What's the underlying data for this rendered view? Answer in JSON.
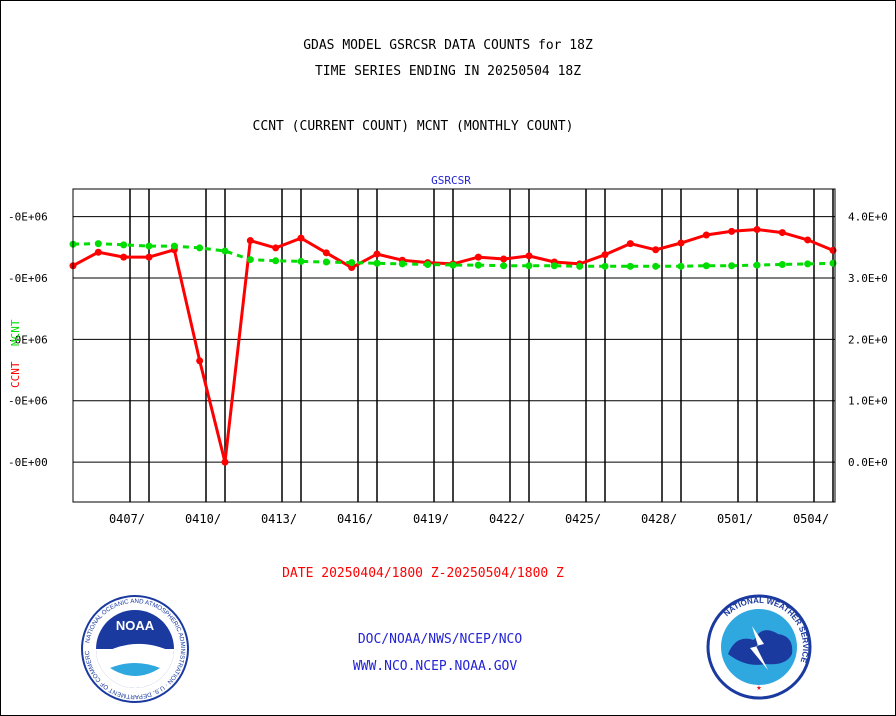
{
  "title_line1": "GDAS MODEL GSRCSR DATA COUNTS for 18Z",
  "title_line2": "TIME SERIES ENDING IN 20250504 18Z",
  "subtitle": "CCNT (CURRENT COUNT) MCNT (MONTHLY COUNT)",
  "date_range": "DATE 20250404/1800 Z-20250504/1800 Z",
  "credit_line1": "DOC/NOAA/NWS/NCEP/NCO",
  "credit_line2": "WWW.NCO.NCEP.NOAA.GOV",
  "logos": {
    "left": {
      "name": "NOAA",
      "ring_text": "NATIONAL OCEANIC AND ATMOSPHERIC ADMINISTRATION · U.S. DEPARTMENT OF COMMERCE"
    },
    "right": {
      "ring_text": "NATIONAL WEATHER SERVICE"
    }
  },
  "colors": {
    "ccnt": "#ff0000",
    "mcnt": "#00dd00",
    "plot_label": "#2323d6",
    "frame": "#000000"
  },
  "chart_data": {
    "type": "line",
    "plot_label": "GSRCSR",
    "ylabel_left": [
      "CCNT",
      "MCNT"
    ],
    "ylim": [
      -650000,
      4450000
    ],
    "x_domain": [
      0.0,
      30.0
    ],
    "grid": true,
    "y_ticks": [
      {
        "value": 0,
        "left": "-0E+00",
        "right": "0.0E+0"
      },
      {
        "value": 1000000,
        "left": "-0E+06",
        "right": "1.0E+0"
      },
      {
        "value": 2000000,
        "left": "-0E+06",
        "right": "2.0E+0"
      },
      {
        "value": 3000000,
        "left": "-0E+06",
        "right": "3.0E+0"
      },
      {
        "value": 4000000,
        "left": "-0E+06",
        "right": "4.0E+0"
      }
    ],
    "x_ticks": [
      {
        "day": 3,
        "label": "0407/"
      },
      {
        "day": 6,
        "label": "0410/"
      },
      {
        "day": 9,
        "label": "0413/"
      },
      {
        "day": 12,
        "label": "0416/"
      },
      {
        "day": 15,
        "label": "0419/"
      },
      {
        "day": 18,
        "label": "0422/"
      },
      {
        "day": 21,
        "label": "0425/"
      },
      {
        "day": 24,
        "label": "0428/"
      },
      {
        "day": 27,
        "label": "0501/"
      },
      {
        "day": 30,
        "label": "0504/"
      }
    ],
    "minor_lines": [
      2.25,
      5.25,
      8.25,
      11.25,
      14.25,
      17.25,
      20.25,
      23.25,
      26.25,
      29.25
    ],
    "series": [
      {
        "name": "CCNT",
        "color": "#ff0000",
        "style": "solid",
        "x": [
          0,
          1,
          2,
          3,
          4,
          5,
          6,
          7,
          8,
          9,
          10,
          11,
          12,
          13,
          14,
          15,
          16,
          17,
          18,
          19,
          20,
          21,
          22,
          23,
          24,
          25,
          26,
          27,
          28,
          29,
          30
        ],
        "values": [
          3200000,
          3420000,
          3340000,
          3340000,
          3460000,
          1650000,
          0,
          3610000,
          3490000,
          3650000,
          3410000,
          3170000,
          3390000,
          3290000,
          3250000,
          3230000,
          3340000,
          3310000,
          3360000,
          3260000,
          3230000,
          3380000,
          3560000,
          3460000,
          3570000,
          3700000,
          3760000,
          3790000,
          3740000,
          3620000,
          3450000
        ]
      },
      {
        "name": "MCNT",
        "color": "#00dd00",
        "style": "dashed",
        "x": [
          0,
          1,
          2,
          3,
          4,
          5,
          6,
          7,
          8,
          9,
          10,
          11,
          12,
          13,
          14,
          15,
          16,
          17,
          18,
          19,
          20,
          21,
          22,
          23,
          24,
          25,
          26,
          27,
          28,
          29,
          30
        ],
        "values": [
          3550000,
          3560000,
          3540000,
          3520000,
          3520000,
          3490000,
          3440000,
          3300000,
          3280000,
          3270000,
          3260000,
          3250000,
          3240000,
          3230000,
          3220000,
          3210000,
          3210000,
          3200000,
          3200000,
          3200000,
          3190000,
          3190000,
          3190000,
          3190000,
          3190000,
          3200000,
          3200000,
          3210000,
          3220000,
          3230000,
          3240000
        ]
      }
    ]
  }
}
